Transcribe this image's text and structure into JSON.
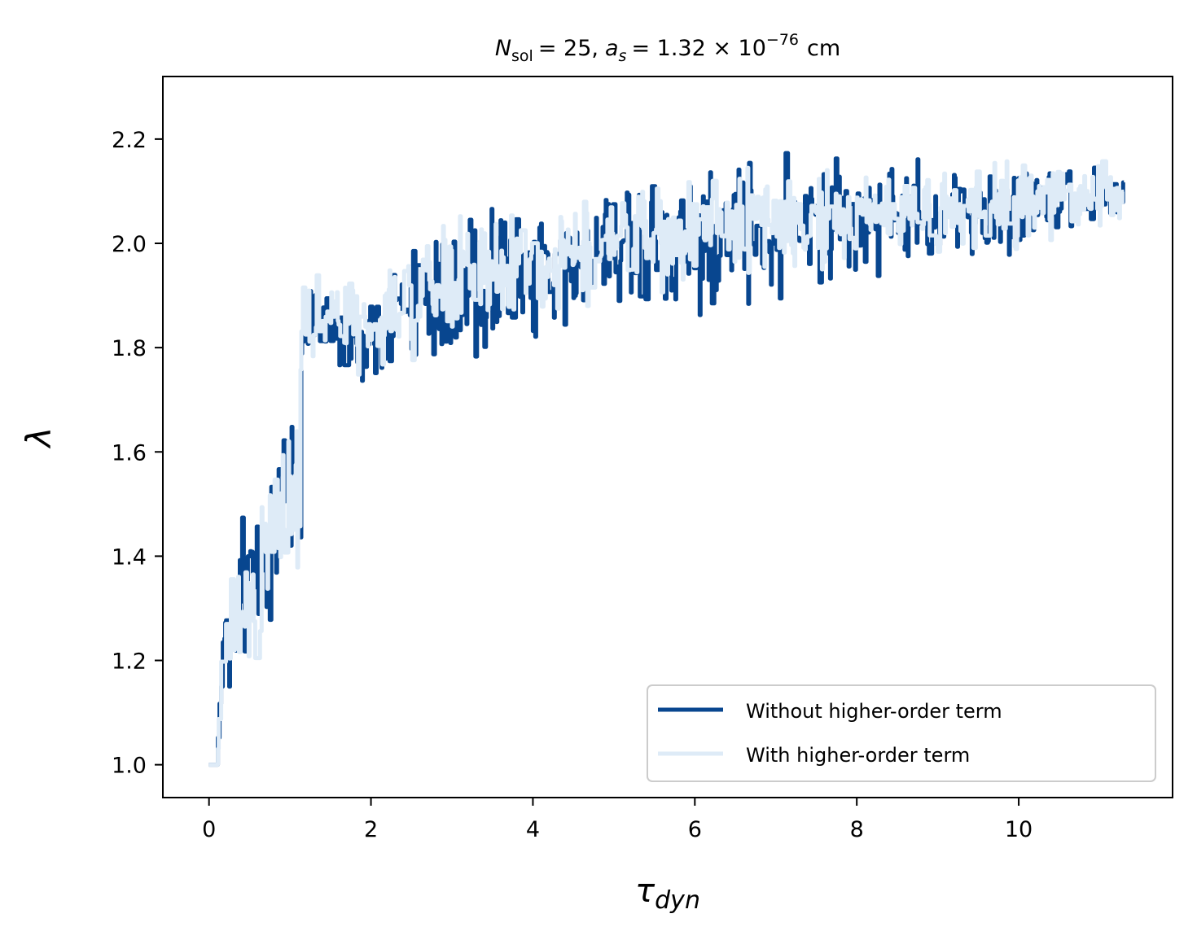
{
  "chart_data": {
    "type": "line",
    "title": {
      "n_symbol": "N",
      "n_sub": "sol",
      "n_value": "= 25,",
      "a_symbol": "a",
      "a_sub": "s",
      "a_value": "= 1.32 × 10",
      "a_exp": "−76",
      "a_unit": "cm"
    },
    "xlabel": {
      "symbol": "τ",
      "sub": "dyn"
    },
    "ylabel": "λ",
    "xlim": [
      -0.57,
      11.9
    ],
    "ylim": [
      0.937,
      2.32
    ],
    "x_ticks": [
      0,
      2,
      4,
      6,
      8,
      10
    ],
    "x_tick_labels": [
      "0",
      "2",
      "4",
      "6",
      "8",
      "10"
    ],
    "y_ticks": [
      1.0,
      1.2,
      1.4,
      1.6,
      1.8,
      2.0,
      2.2
    ],
    "y_tick_labels": [
      "1.0",
      "1.2",
      "1.4",
      "1.6",
      "1.8",
      "2.0",
      "2.2"
    ],
    "legend_position": "lower-right",
    "series": [
      {
        "name": "Without higher-order term",
        "color": "#08468f",
        "x": [
          0,
          0.1,
          0.15,
          0.3,
          0.5,
          0.75,
          1.0,
          1.1,
          1.15,
          1.5,
          2.0,
          2.5,
          3.0,
          3.5,
          4.0,
          4.5,
          5.0,
          5.5,
          6.0,
          6.5,
          7.0,
          7.5,
          8.0,
          8.5,
          9.0,
          9.5,
          10.0,
          10.5,
          11.0,
          11.3
        ],
        "values": [
          1.0,
          1.0,
          1.25,
          1.28,
          1.35,
          1.45,
          1.5,
          1.55,
          1.85,
          1.83,
          1.82,
          1.88,
          1.9,
          1.92,
          1.93,
          1.97,
          2.0,
          2.0,
          2.01,
          2.02,
          2.03,
          2.04,
          2.05,
          2.05,
          2.06,
          2.06,
          2.07,
          2.08,
          2.09,
          2.09
        ],
        "band": [
          0,
          0,
          0.18,
          0.2,
          0.2,
          0.2,
          0.2,
          0.2,
          0.14,
          0.12,
          0.12,
          0.13,
          0.17,
          0.2,
          0.2,
          0.18,
          0.18,
          0.2,
          0.2,
          0.2,
          0.22,
          0.18,
          0.15,
          0.14,
          0.12,
          0.12,
          0.12,
          0.1,
          0.1,
          0.06
        ]
      },
      {
        "name": "With higher-order term",
        "color": "#deebf7",
        "x": [
          0,
          0.1,
          0.15,
          0.3,
          0.5,
          0.75,
          1.0,
          1.1,
          1.15,
          1.5,
          2.0,
          2.5,
          3.0,
          3.5,
          4.0,
          4.5,
          5.0,
          5.5,
          6.0,
          6.5,
          7.0,
          7.5,
          8.0,
          8.5,
          9.0,
          9.5,
          10.0,
          10.5,
          11.0,
          11.3
        ],
        "values": [
          1.0,
          1.0,
          1.25,
          1.28,
          1.35,
          1.45,
          1.5,
          1.55,
          1.87,
          1.85,
          1.84,
          1.9,
          1.93,
          1.94,
          1.96,
          1.98,
          2.0,
          2.01,
          2.02,
          2.03,
          2.04,
          2.04,
          2.05,
          2.06,
          2.06,
          2.07,
          2.07,
          2.08,
          2.09,
          2.09
        ],
        "band": [
          0,
          0,
          0.18,
          0.2,
          0.2,
          0.2,
          0.2,
          0.2,
          0.18,
          0.14,
          0.13,
          0.16,
          0.18,
          0.15,
          0.13,
          0.13,
          0.13,
          0.14,
          0.15,
          0.15,
          0.15,
          0.12,
          0.11,
          0.11,
          0.12,
          0.12,
          0.13,
          0.11,
          0.1,
          0.06
        ]
      }
    ]
  }
}
